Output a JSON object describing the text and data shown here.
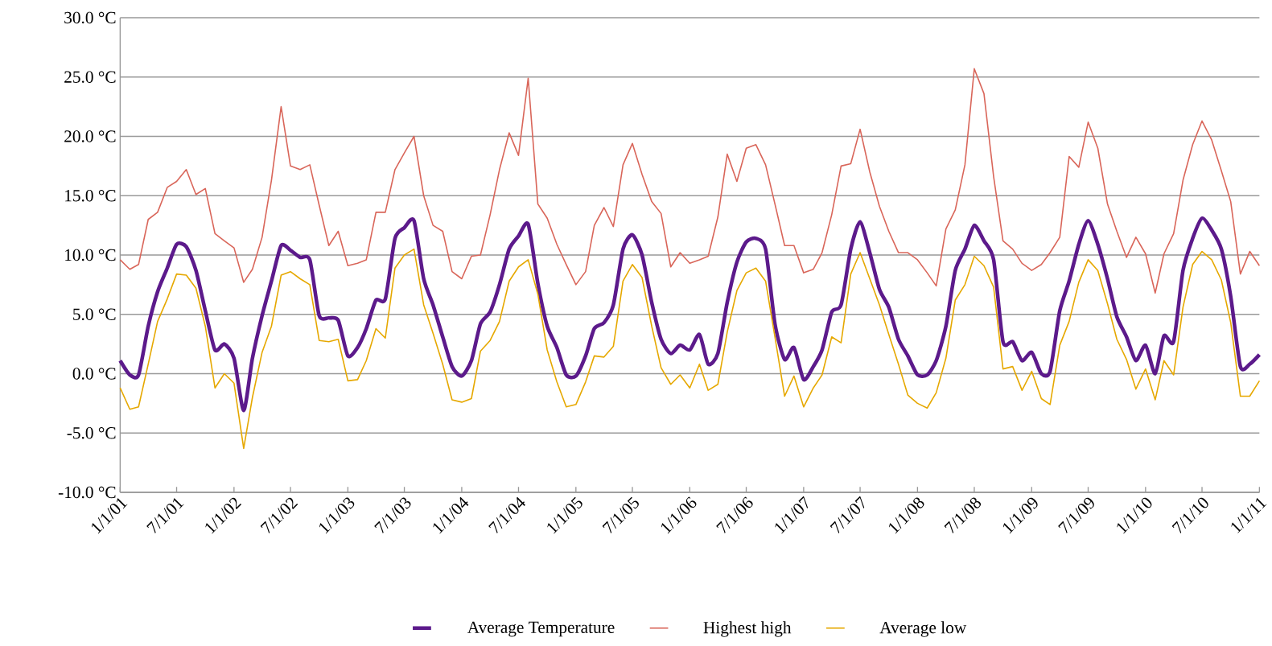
{
  "chart_data": {
    "type": "line",
    "x": [
      "2001-01",
      "2001-02",
      "2001-03",
      "2001-04",
      "2001-05",
      "2001-06",
      "2001-07",
      "2001-08",
      "2001-09",
      "2001-10",
      "2001-11",
      "2001-12",
      "2002-01",
      "2002-02",
      "2002-03",
      "2002-04",
      "2002-05",
      "2002-06",
      "2002-07",
      "2002-08",
      "2002-09",
      "2002-10",
      "2002-11",
      "2002-12",
      "2003-01",
      "2003-02",
      "2003-03",
      "2003-04",
      "2003-05",
      "2003-06",
      "2003-07",
      "2003-08",
      "2003-09",
      "2003-10",
      "2003-11",
      "2003-12",
      "2004-01",
      "2004-02",
      "2004-03",
      "2004-04",
      "2004-05",
      "2004-06",
      "2004-07",
      "2004-08",
      "2004-09",
      "2004-10",
      "2004-11",
      "2004-12",
      "2005-01",
      "2005-02",
      "2005-03",
      "2005-04",
      "2005-05",
      "2005-06",
      "2005-07",
      "2005-08",
      "2005-09",
      "2005-10",
      "2005-11",
      "2005-12",
      "2006-01",
      "2006-02",
      "2006-03",
      "2006-04",
      "2006-05",
      "2006-06",
      "2006-07",
      "2006-08",
      "2006-09",
      "2006-10",
      "2006-11",
      "2006-12",
      "2007-01",
      "2007-02",
      "2007-03",
      "2007-04",
      "2007-05",
      "2007-06",
      "2007-07",
      "2007-08",
      "2007-09",
      "2007-10",
      "2007-11",
      "2007-12",
      "2008-01",
      "2008-02",
      "2008-03",
      "2008-04",
      "2008-05",
      "2008-06",
      "2008-07",
      "2008-08",
      "2008-09",
      "2008-10",
      "2008-11",
      "2008-12",
      "2009-01",
      "2009-02",
      "2009-03",
      "2009-04",
      "2009-05",
      "2009-06",
      "2009-07",
      "2009-08",
      "2009-09",
      "2009-10",
      "2009-11",
      "2009-12",
      "2010-01",
      "2010-02",
      "2010-03",
      "2010-04",
      "2010-05",
      "2010-06",
      "2010-07",
      "2010-08",
      "2010-09",
      "2010-10",
      "2010-11",
      "2010-12",
      "2011-01"
    ],
    "series": [
      {
        "name": "Average Temperature",
        "color": "#5c1a8b",
        "values": [
          1.1,
          -0.1,
          -0.1,
          4.0,
          6.9,
          8.9,
          10.9,
          10.7,
          8.7,
          5.3,
          2.0,
          2.5,
          1.3,
          -3.1,
          1.3,
          4.9,
          7.8,
          10.8,
          10.4,
          9.8,
          9.6,
          4.9,
          4.7,
          4.5,
          1.5,
          2.2,
          3.8,
          6.2,
          6.3,
          11.4,
          12.3,
          12.9,
          8.0,
          5.8,
          3.1,
          0.6,
          -0.2,
          1.1,
          4.2,
          5.2,
          7.5,
          10.5,
          11.6,
          12.6,
          7.6,
          4.0,
          2.2,
          -0.1,
          -0.2,
          1.5,
          3.8,
          4.3,
          5.8,
          10.5,
          11.7,
          10.0,
          6.0,
          2.9,
          1.7,
          2.4,
          2.0,
          3.3,
          0.8,
          1.7,
          6.0,
          9.4,
          11.1,
          11.4,
          10.5,
          4.2,
          1.2,
          2.2,
          -0.5,
          0.6,
          2.0,
          5.2,
          5.8,
          10.5,
          12.8,
          10.2,
          7.1,
          5.6,
          2.9,
          1.5,
          -0.1,
          -0.1,
          1.1,
          4.0,
          8.7,
          10.5,
          12.5,
          11.2,
          9.6,
          2.7,
          2.7,
          1.1,
          1.8,
          0.0,
          0.2,
          5.3,
          7.8,
          10.9,
          12.9,
          10.9,
          8.0,
          4.8,
          3.1,
          1.1,
          2.4,
          0.0,
          3.2,
          2.7,
          8.7,
          11.4,
          13.1,
          12.1,
          10.5,
          6.5,
          0.6,
          0.8,
          1.6
        ]
      },
      {
        "name": "Highest high",
        "color": "#d9665a",
        "values": [
          9.6,
          8.8,
          9.2,
          13.0,
          13.6,
          15.7,
          16.2,
          17.2,
          15.1,
          15.6,
          11.8,
          11.2,
          10.6,
          7.7,
          8.8,
          11.5,
          16.3,
          22.5,
          17.5,
          17.2,
          17.6,
          14.2,
          10.8,
          12.0,
          9.1,
          9.3,
          9.6,
          13.6,
          13.6,
          17.2,
          18.6,
          20.0,
          15.0,
          12.5,
          12.0,
          8.6,
          8.0,
          9.9,
          10.0,
          13.4,
          17.2,
          20.3,
          18.4,
          24.9,
          14.3,
          13.1,
          10.9,
          9.2,
          7.5,
          8.6,
          12.5,
          14.0,
          12.4,
          17.6,
          19.4,
          16.8,
          14.5,
          13.5,
          9.0,
          10.2,
          9.3,
          9.6,
          9.9,
          13.2,
          18.5,
          16.2,
          19.0,
          19.3,
          17.6,
          14.3,
          10.8,
          10.8,
          8.5,
          8.8,
          10.2,
          13.4,
          17.5,
          17.7,
          20.6,
          17.0,
          14.1,
          12.0,
          10.2,
          10.2,
          9.6,
          8.5,
          7.4,
          12.2,
          13.8,
          17.6,
          25.7,
          23.6,
          16.6,
          11.2,
          10.5,
          9.3,
          8.7,
          9.2,
          10.2,
          11.5,
          18.3,
          17.4,
          21.2,
          19.0,
          14.3,
          12.0,
          9.8,
          11.5,
          10.1,
          6.8,
          10.1,
          11.8,
          16.3,
          19.3,
          21.3,
          19.7,
          17.1,
          14.5,
          8.4,
          10.3,
          9.1
        ]
      },
      {
        "name": "Average low",
        "color": "#e6a800",
        "values": [
          -1.2,
          -3.0,
          -2.8,
          0.8,
          4.4,
          6.3,
          8.4,
          8.3,
          7.2,
          4.0,
          -1.2,
          0.0,
          -0.8,
          -6.3,
          -2.0,
          1.8,
          4.0,
          8.3,
          8.6,
          8.0,
          7.5,
          2.8,
          2.7,
          2.9,
          -0.6,
          -0.5,
          1.1,
          3.8,
          3.0,
          8.9,
          10.0,
          10.5,
          5.8,
          3.4,
          0.8,
          -2.2,
          -2.4,
          -2.1,
          1.9,
          2.8,
          4.4,
          7.8,
          9.0,
          9.6,
          6.7,
          2.0,
          -0.7,
          -2.8,
          -2.6,
          -0.7,
          1.5,
          1.4,
          2.3,
          7.8,
          9.2,
          8.1,
          4.0,
          0.5,
          -0.9,
          -0.1,
          -1.2,
          0.8,
          -1.4,
          -0.9,
          3.5,
          7.0,
          8.5,
          8.9,
          7.8,
          3.1,
          -1.9,
          -0.2,
          -2.8,
          -1.2,
          -0.1,
          3.1,
          2.6,
          8.4,
          10.2,
          8.0,
          5.8,
          3.3,
          0.8,
          -1.8,
          -2.5,
          -2.9,
          -1.6,
          1.3,
          6.2,
          7.5,
          9.9,
          9.1,
          7.3,
          0.4,
          0.6,
          -1.4,
          0.2,
          -2.1,
          -2.6,
          2.4,
          4.4,
          7.7,
          9.6,
          8.7,
          5.9,
          2.9,
          1.2,
          -1.3,
          0.4,
          -2.2,
          1.1,
          -0.1,
          5.6,
          9.2,
          10.3,
          9.6,
          7.9,
          4.3,
          -1.9,
          -1.9,
          -0.6
        ]
      }
    ],
    "xlim": [
      "2001-01-01",
      "2011-01-01"
    ],
    "xticks": [
      {
        "value": "2001-01-01",
        "label": "1/1/01"
      },
      {
        "value": "2001-07-01",
        "label": "7/1/01"
      },
      {
        "value": "2002-01-01",
        "label": "1/1/02"
      },
      {
        "value": "2002-07-01",
        "label": "7/1/02"
      },
      {
        "value": "2003-01-01",
        "label": "1/1/03"
      },
      {
        "value": "2003-07-01",
        "label": "7/1/03"
      },
      {
        "value": "2004-01-01",
        "label": "1/1/04"
      },
      {
        "value": "2004-07-01",
        "label": "7/1/04"
      },
      {
        "value": "2005-01-01",
        "label": "1/1/05"
      },
      {
        "value": "2005-07-01",
        "label": "7/1/05"
      },
      {
        "value": "2006-01-01",
        "label": "1/1/06"
      },
      {
        "value": "2006-07-01",
        "label": "7/1/06"
      },
      {
        "value": "2007-01-01",
        "label": "1/1/07"
      },
      {
        "value": "2007-07-01",
        "label": "7/1/07"
      },
      {
        "value": "2008-01-01",
        "label": "1/1/08"
      },
      {
        "value": "2008-07-01",
        "label": "7/1/08"
      },
      {
        "value": "2009-01-01",
        "label": "1/1/09"
      },
      {
        "value": "2009-07-01",
        "label": "7/1/09"
      },
      {
        "value": "2010-01-01",
        "label": "1/1/10"
      },
      {
        "value": "2010-07-01",
        "label": "7/1/10"
      },
      {
        "value": "2011-01-01",
        "label": "1/1/11"
      }
    ],
    "ylim": [
      -10,
      30
    ],
    "yticks": [
      {
        "value": -10,
        "label": "-10.0 °C"
      },
      {
        "value": -5,
        "label": "-5.0 °C"
      },
      {
        "value": 0,
        "label": "0.0 °C"
      },
      {
        "value": 5,
        "label": "5.0 °C"
      },
      {
        "value": 10,
        "label": "10.0 °C"
      },
      {
        "value": 15,
        "label": "15.0 °C"
      },
      {
        "value": 20,
        "label": "20.0 °C"
      },
      {
        "value": 25,
        "label": "25.0 °C"
      },
      {
        "value": 30,
        "label": "30.0 °C"
      }
    ],
    "grid": "y",
    "legend": "bottom",
    "marker": "none"
  }
}
